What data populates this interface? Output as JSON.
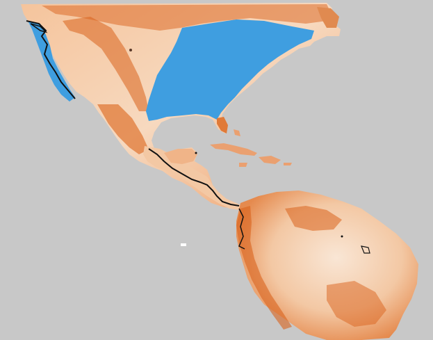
{
  "map": {
    "background_color": "#c8c8c8",
    "ocean_color": "#c8c8c8",
    "land_low_color": "#fbeee2",
    "land_mid_color": "#f2b88a",
    "land_high_color": "#d9621c",
    "suitable_area_color": "#3f9ee0",
    "occurrence_outline_color": "#111111",
    "regions": [
      "north-america",
      "central-america",
      "caribbean",
      "south-america"
    ]
  }
}
